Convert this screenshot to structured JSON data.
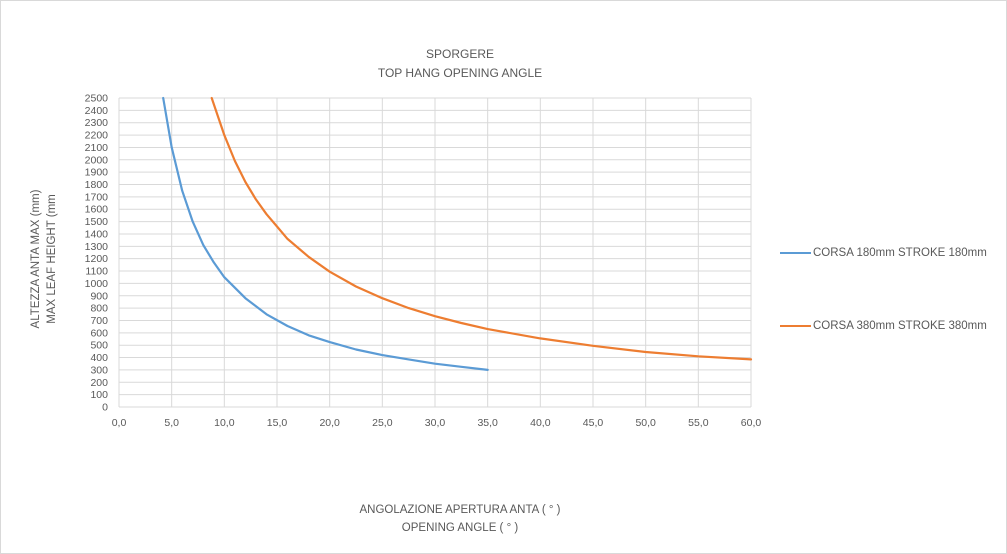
{
  "chart_data": {
    "type": "line",
    "title": "SPORGERE",
    "subtitle": "TOP HANG OPENING ANGLE",
    "xlabel": "ANGOLAZIONE APERTURA ANTA ( ° )",
    "xlabel2": "OPENING ANGLE ( ° )",
    "ylabel": "ALTEZZA ANTA MAX (mm)",
    "ylabel2": "MAX LEAF HEIGHT (mm",
    "xlim": [
      0,
      60
    ],
    "ylim": [
      0,
      2500
    ],
    "x_ticks": [
      "0,0",
      "5,0",
      "10,0",
      "15,0",
      "20,0",
      "25,0",
      "30,0",
      "35,0",
      "40,0",
      "45,0",
      "50,0",
      "55,0",
      "60,0"
    ],
    "y_ticks": [
      "0",
      "100",
      "200",
      "300",
      "400",
      "500",
      "600",
      "700",
      "800",
      "900",
      "1000",
      "1100",
      "1200",
      "1300",
      "1400",
      "1500",
      "1600",
      "1700",
      "1800",
      "1900",
      "2000",
      "2100",
      "2200",
      "2300",
      "2400",
      "2500"
    ],
    "grid": true,
    "legend_position": "right",
    "series": [
      {
        "name": "CORSA 180mm STROKE 180mm",
        "color": "#5b9bd5",
        "points": [
          [
            4.2,
            2500
          ],
          [
            5,
            2100
          ],
          [
            6,
            1750
          ],
          [
            7,
            1500
          ],
          [
            8,
            1310
          ],
          [
            9,
            1170
          ],
          [
            10,
            1050
          ],
          [
            12,
            880
          ],
          [
            14,
            750
          ],
          [
            16,
            655
          ],
          [
            18,
            580
          ],
          [
            20,
            525
          ],
          [
            22.5,
            465
          ],
          [
            25,
            420
          ],
          [
            27.5,
            385
          ],
          [
            30,
            350
          ],
          [
            32.5,
            325
          ],
          [
            35,
            300
          ]
        ]
      },
      {
        "name": "CORSA 380mm STROKE 380mm",
        "color": "#ed7d31",
        "points": [
          [
            8.8,
            2500
          ],
          [
            10,
            2200
          ],
          [
            11,
            1990
          ],
          [
            12,
            1820
          ],
          [
            13,
            1680
          ],
          [
            14,
            1560
          ],
          [
            15,
            1460
          ],
          [
            16,
            1360
          ],
          [
            18,
            1215
          ],
          [
            20,
            1095
          ],
          [
            22.5,
            975
          ],
          [
            25,
            880
          ],
          [
            27.5,
            800
          ],
          [
            30,
            735
          ],
          [
            32.5,
            680
          ],
          [
            35,
            630
          ],
          [
            40,
            555
          ],
          [
            45,
            495
          ],
          [
            50,
            445
          ],
          [
            55,
            410
          ],
          [
            60,
            385
          ]
        ]
      }
    ]
  }
}
